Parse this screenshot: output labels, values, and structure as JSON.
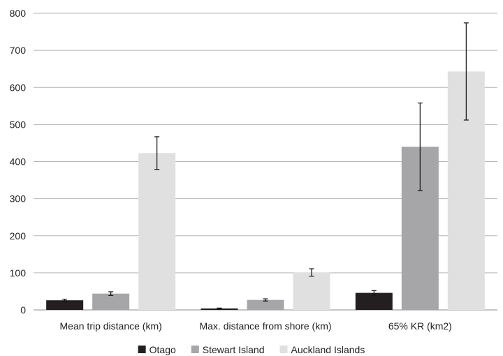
{
  "chart_data": {
    "type": "bar",
    "categories": [
      "Mean trip distance (km)",
      "Max. distance from shore (km)",
      "65% KR (km2)"
    ],
    "series": [
      {
        "name": "Otago",
        "color": "#231f20",
        "values": [
          26,
          4,
          46
        ],
        "errors": [
          3,
          1,
          6
        ]
      },
      {
        "name": "Stewart Island",
        "color": "#a6a6a8",
        "values": [
          44,
          27,
          440
        ],
        "errors": [
          5,
          3,
          118
        ]
      },
      {
        "name": "Auckland Islands",
        "color": "#e0e0e1",
        "values": [
          423,
          101,
          643
        ],
        "errors": [
          44,
          10,
          131
        ]
      }
    ],
    "ylim": [
      0,
      800
    ],
    "yticks": [
      "0",
      "100",
      "200",
      "300",
      "400",
      "500",
      "600",
      "700",
      "800"
    ],
    "grid": true,
    "legend": "bottom"
  }
}
